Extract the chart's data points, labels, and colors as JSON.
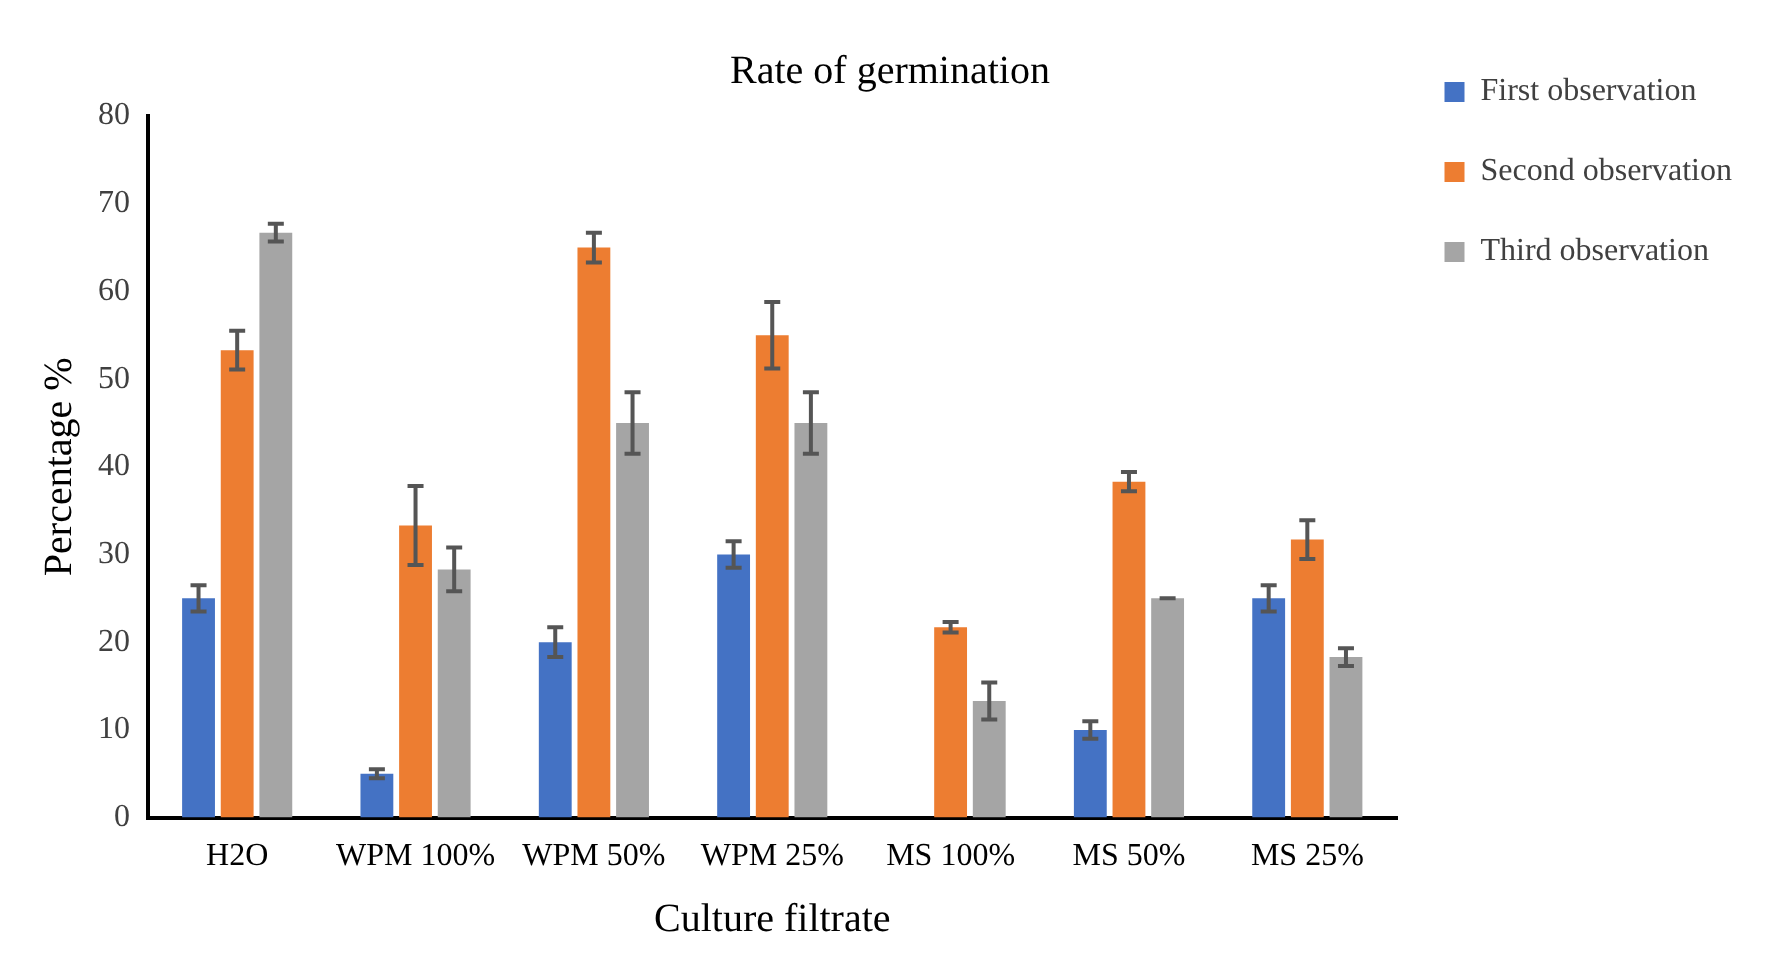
{
  "chart_data": {
    "type": "bar",
    "title": "Rate of germination",
    "xlabel": "Culture filtrate",
    "ylabel": "Percentage %",
    "categories": [
      "H2O",
      "WPM 100%",
      "WPM 50%",
      "WPM 25%",
      "MS 100%",
      "MS 50%",
      "MS 25%"
    ],
    "series": [
      {
        "name": "First observation",
        "color": "#4472c4",
        "values": [
          25,
          5,
          20,
          30,
          0,
          10,
          25
        ],
        "errors": [
          1.5,
          0.5,
          1.7,
          1.5,
          null,
          1,
          1.5
        ]
      },
      {
        "name": "Second observation",
        "color": "#ed7d31",
        "values": [
          53.3,
          33.3,
          65,
          55,
          21.7,
          38.3,
          31.7
        ],
        "errors": [
          2.2,
          4.5,
          1.7,
          3.8,
          0.6,
          1.1,
          2.2
        ]
      },
      {
        "name": "Third observation",
        "color": "#a5a5a5",
        "values": [
          66.7,
          28.3,
          45,
          45,
          13.3,
          25,
          18.3
        ],
        "errors": [
          1,
          2.5,
          3.5,
          3.5,
          2.1,
          0,
          1
        ]
      }
    ],
    "ylim": [
      0,
      80
    ],
    "yticks": [
      0,
      10,
      20,
      30,
      40,
      50,
      60,
      70,
      80
    ],
    "grid": false,
    "legend": "top right"
  }
}
